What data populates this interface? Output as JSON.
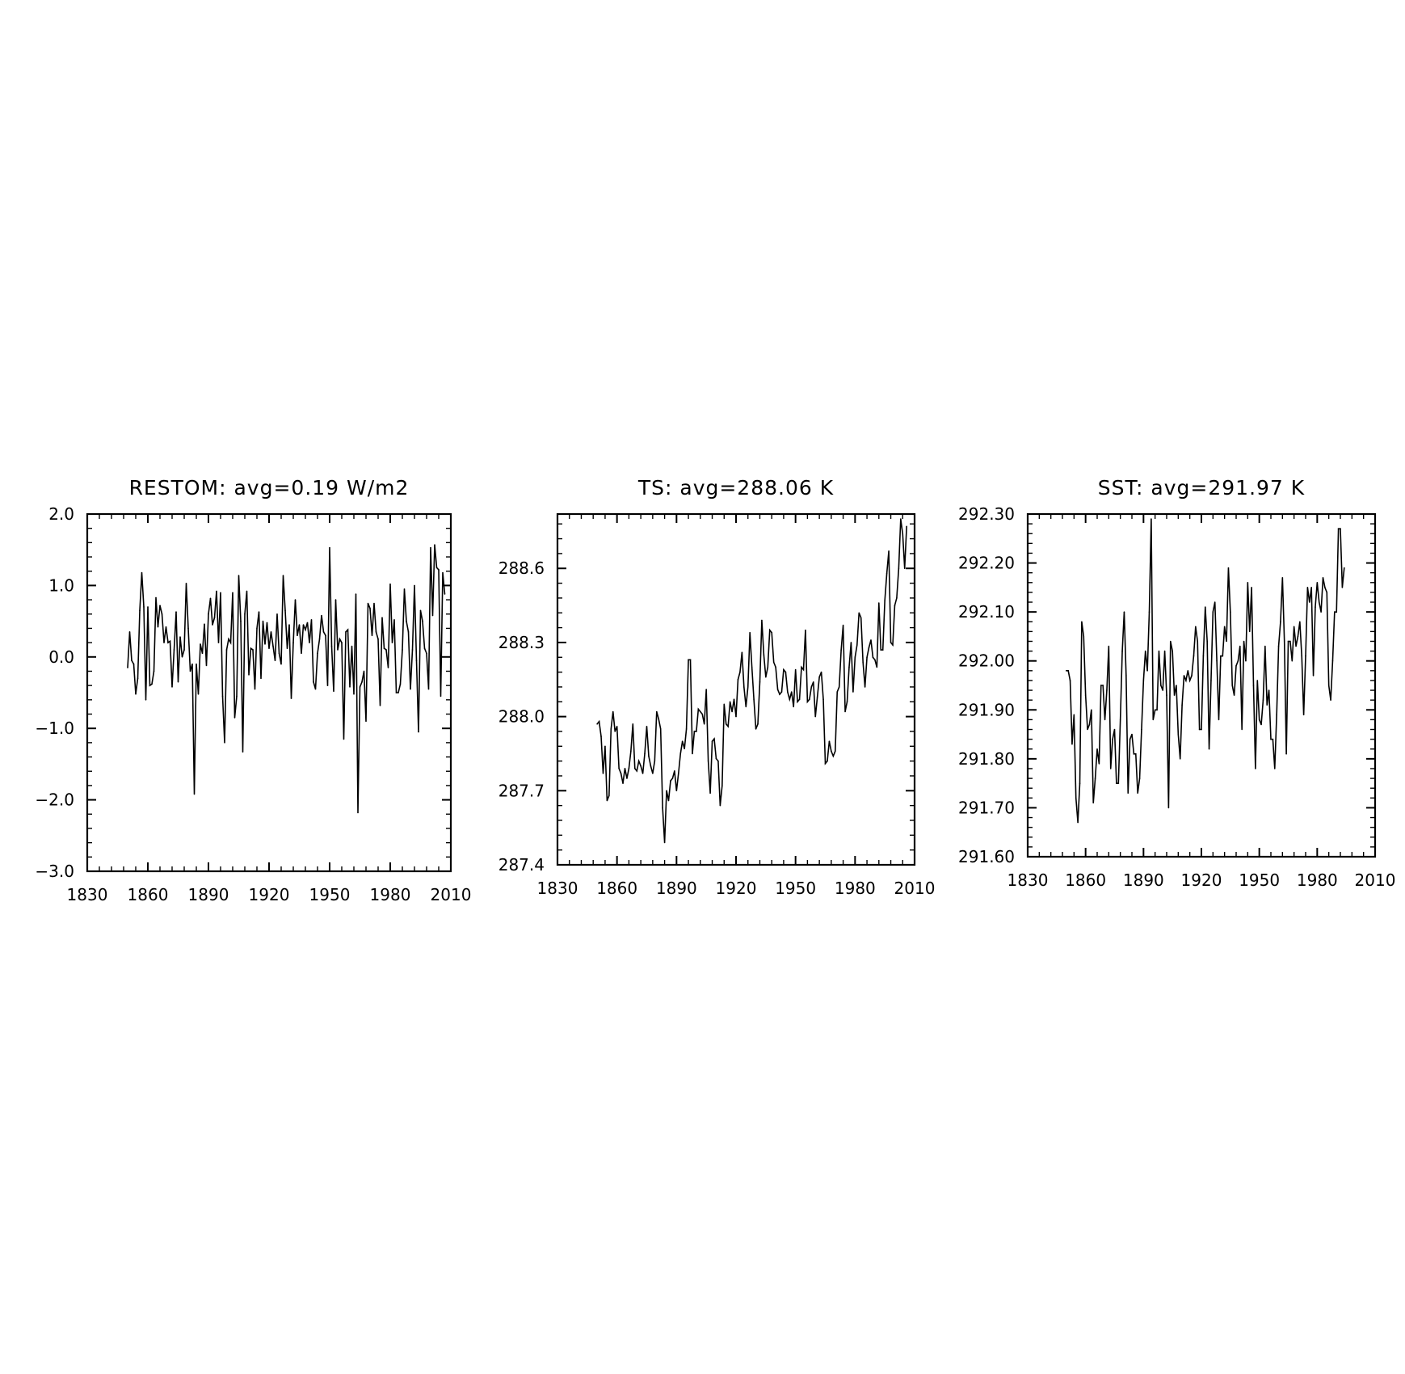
{
  "figure": {
    "background": "#ffffff",
    "line_color": "#000000"
  },
  "chart_data": [
    {
      "type": "line",
      "title": "RESTOM: avg=0.19 W/m2",
      "xlabel": "",
      "ylabel": "",
      "xlim": [
        1830,
        2010
      ],
      "ylim": [
        -3.0,
        2.0
      ],
      "x_ticks": [
        1830,
        1860,
        1890,
        1920,
        1950,
        1980,
        2010
      ],
      "y_ticks": [
        -3.0,
        -2.0,
        -1.0,
        0.0,
        1.0,
        2.0
      ],
      "y_tick_labels": [
        "−3.0",
        "−2.0",
        "−1.0",
        "0.0",
        "1.0",
        "2.0"
      ],
      "grid": false,
      "series": [
        {
          "x_start": 1850,
          "x_step": 1,
          "values": [
            -0.15,
            0.35,
            -0.05,
            -0.1,
            -0.52,
            -0.3,
            0.65,
            1.18,
            0.7,
            -0.6,
            0.7,
            -0.4,
            -0.38,
            -0.2,
            0.83,
            0.42,
            0.72,
            0.6,
            0.2,
            0.42,
            0.2,
            0.22,
            -0.42,
            0.1,
            0.63,
            -0.35,
            0.28,
            0.0,
            0.1,
            1.03,
            0.4,
            -0.2,
            -0.1,
            -1.92,
            -0.1,
            -0.52,
            0.18,
            0.05,
            0.46,
            -0.12,
            0.6,
            0.82,
            0.45,
            0.55,
            0.92,
            0.2,
            0.9,
            -0.55,
            -1.2,
            0.1,
            0.25,
            0.2,
            0.9,
            -0.85,
            -0.55,
            1.14,
            0.5,
            -1.33,
            0.6,
            0.92,
            -0.25,
            0.12,
            0.1,
            -0.45,
            0.4,
            0.63,
            -0.3,
            0.5,
            0.18,
            0.48,
            0.12,
            0.35,
            0.15,
            -0.05,
            0.6,
            0.05,
            -0.1,
            1.14,
            0.65,
            0.12,
            0.45,
            -0.58,
            0.2,
            0.8,
            0.3,
            0.45,
            0.05,
            0.45,
            0.38,
            0.48,
            0.2,
            0.52,
            -0.35,
            -0.45,
            0.05,
            0.25,
            0.58,
            0.35,
            0.3,
            -0.4,
            1.53,
            0.15,
            -0.48,
            0.8,
            0.1,
            0.25,
            0.2,
            -1.15,
            0.35,
            0.38,
            -0.42,
            0.15,
            -0.52,
            0.88,
            -2.18,
            -0.42,
            -0.35,
            -0.2,
            -0.9,
            0.75,
            0.68,
            0.3,
            0.75,
            0.35,
            0.25,
            -0.68,
            0.55,
            0.12,
            0.1,
            -0.15,
            1.02,
            0.2,
            0.52,
            -0.5,
            -0.5,
            -0.38,
            0.1,
            0.95,
            0.5,
            0.35,
            -0.45,
            0.1,
            1.0,
            -0.05,
            -1.05,
            0.65,
            0.5,
            0.12,
            0.05,
            -0.45,
            1.53,
            0.58,
            1.57,
            1.25,
            1.22,
            -0.55,
            1.18,
            0.88
          ]
        }
      ]
    },
    {
      "type": "line",
      "title": "TS: avg=288.06 K",
      "xlabel": "",
      "ylabel": "",
      "xlim": [
        1830,
        2010
      ],
      "ylim": [
        287.4,
        288.82
      ],
      "x_ticks": [
        1830,
        1860,
        1890,
        1920,
        1950,
        1980,
        2010
      ],
      "y_ticks": [
        287.4,
        287.7,
        288.0,
        288.3,
        288.6
      ],
      "y_tick_labels": [
        "287.4",
        "287.7",
        "288.0",
        "288.3",
        "288.6"
      ],
      "grid": false,
      "series": [
        {
          "x_start": 1850,
          "x_step": 1,
          "values": [
            287.97,
            287.98,
            287.92,
            287.77,
            287.88,
            287.66,
            287.68,
            287.95,
            288.02,
            287.94,
            287.96,
            287.79,
            287.77,
            287.73,
            287.79,
            287.75,
            287.79,
            287.86,
            287.97,
            287.79,
            287.78,
            287.82,
            287.8,
            287.77,
            287.85,
            287.96,
            287.84,
            287.8,
            287.77,
            287.82,
            288.02,
            287.99,
            287.95,
            287.63,
            287.49,
            287.7,
            287.66,
            287.74,
            287.75,
            287.78,
            287.7,
            287.77,
            287.85,
            287.9,
            287.87,
            287.95,
            288.23,
            288.23,
            287.85,
            287.94,
            287.94,
            288.03,
            288.02,
            288.01,
            287.97,
            288.11,
            287.82,
            287.69,
            287.9,
            287.91,
            287.83,
            287.82,
            287.64,
            287.72,
            288.05,
            287.97,
            287.96,
            288.06,
            288.02,
            288.07,
            288.0,
            288.15,
            288.18,
            288.26,
            288.12,
            288.04,
            288.12,
            288.34,
            288.2,
            288.07,
            287.95,
            287.97,
            288.14,
            288.39,
            288.25,
            288.16,
            288.2,
            288.35,
            288.34,
            288.22,
            288.2,
            288.11,
            288.09,
            288.1,
            288.19,
            288.18,
            288.1,
            288.07,
            288.1,
            288.04,
            288.19,
            288.06,
            288.07,
            288.2,
            288.19,
            288.35,
            288.06,
            288.07,
            288.12,
            288.14,
            288.0,
            288.08,
            288.16,
            288.18,
            288.07,
            287.81,
            287.82,
            287.9,
            287.86,
            287.84,
            287.86,
            288.1,
            288.12,
            288.27,
            288.37,
            288.02,
            288.06,
            288.2,
            288.3,
            288.1,
            288.24,
            288.29,
            288.42,
            288.4,
            288.22,
            288.12,
            288.24,
            288.28,
            288.31,
            288.24,
            288.23,
            288.2,
            288.46,
            288.27,
            288.27,
            288.47,
            288.58,
            288.67,
            288.3,
            288.29,
            288.45,
            288.48,
            288.6,
            288.8,
            288.74,
            288.6,
            288.77
          ]
        }
      ]
    },
    {
      "type": "line",
      "title": "SST: avg=291.97 K",
      "xlabel": "",
      "ylabel": "",
      "xlim": [
        1830,
        2010
      ],
      "ylim": [
        291.6,
        292.3
      ],
      "x_ticks": [
        1830,
        1860,
        1890,
        1920,
        1950,
        1980,
        2010
      ],
      "y_ticks": [
        291.6,
        291.7,
        291.8,
        291.9,
        292.0,
        292.1,
        292.2,
        292.3
      ],
      "y_tick_labels": [
        "291.60",
        "291.70",
        "291.80",
        "291.90",
        "292.00",
        "292.10",
        "292.20",
        "292.30"
      ],
      "grid": false,
      "series": [
        {
          "x_start": 1850,
          "x_step": 1,
          "values": [
            291.98,
            291.98,
            291.96,
            291.83,
            291.89,
            291.72,
            291.67,
            291.75,
            292.08,
            292.05,
            291.93,
            291.86,
            291.87,
            291.9,
            291.71,
            291.76,
            291.82,
            291.79,
            291.95,
            291.95,
            291.88,
            291.94,
            292.03,
            291.78,
            291.84,
            291.86,
            291.75,
            291.75,
            291.88,
            292.02,
            292.1,
            291.97,
            291.73,
            291.84,
            291.85,
            291.81,
            291.81,
            291.73,
            291.76,
            291.86,
            291.96,
            292.02,
            291.98,
            292.1,
            292.29,
            291.88,
            291.9,
            291.9,
            292.02,
            291.95,
            291.94,
            292.02,
            291.93,
            291.7,
            292.04,
            292.02,
            291.93,
            291.95,
            291.85,
            291.8,
            291.91,
            291.97,
            291.96,
            291.98,
            291.96,
            291.97,
            292.01,
            292.07,
            292.04,
            291.86,
            291.86,
            292.01,
            292.11,
            292.04,
            291.82,
            291.96,
            292.1,
            292.12,
            292.0,
            291.88,
            292.01,
            292.01,
            292.07,
            292.04,
            292.19,
            292.1,
            291.95,
            291.93,
            291.99,
            292.0,
            292.03,
            291.86,
            292.04,
            292.0,
            292.16,
            292.06,
            292.15,
            291.95,
            291.78,
            291.96,
            291.88,
            291.87,
            291.92,
            292.03,
            291.91,
            291.94,
            291.84,
            291.84,
            291.78,
            291.89,
            292.03,
            292.08,
            292.17,
            292.04,
            291.81,
            292.04,
            292.04,
            292.0,
            292.07,
            292.03,
            292.05,
            292.08,
            292.01,
            291.89,
            292.01,
            292.15,
            292.12,
            292.15,
            291.97,
            292.11,
            292.16,
            292.12,
            292.1,
            292.17,
            292.15,
            292.14,
            291.95,
            291.92,
            292.0,
            292.1,
            292.1,
            292.27,
            292.27,
            292.15,
            292.19
          ]
        }
      ]
    }
  ]
}
